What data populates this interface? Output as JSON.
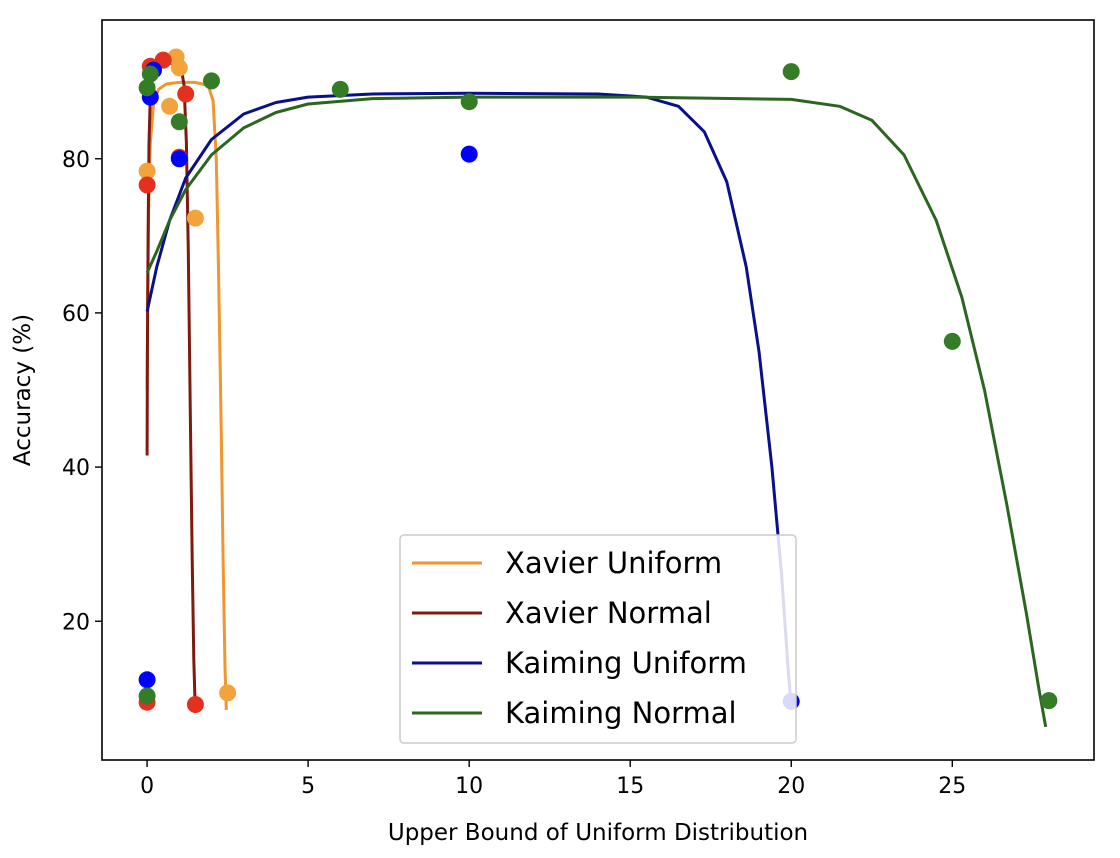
{
  "chart_data": {
    "type": "scatter",
    "title": "",
    "xlabel": "Upper Bound of Uniform Distribution",
    "ylabel": "Accuracy (%)",
    "xlim": [
      -1.4,
      29.4
    ],
    "ylim": [
      2,
      98
    ],
    "x_ticks": [
      0,
      5,
      10,
      15,
      20,
      25
    ],
    "y_ticks": [
      20,
      40,
      60,
      80
    ],
    "grid": false,
    "legend_position": "lower center",
    "series": [
      {
        "name": "Xavier Uniform",
        "line_color": "#f0952f",
        "point_color": "#f2a33b",
        "points": [
          {
            "x": 0.0,
            "y": 78.4
          },
          {
            "x": 0.7,
            "y": 86.8
          },
          {
            "x": 0.9,
            "y": 93.2
          },
          {
            "x": 1.0,
            "y": 91.8
          },
          {
            "x": 1.5,
            "y": 72.3
          },
          {
            "x": 2.5,
            "y": 10.7
          }
        ],
        "curve": [
          {
            "x": 0.0,
            "y": 50
          },
          {
            "x": 0.02,
            "y": 62
          },
          {
            "x": 0.05,
            "y": 74
          },
          {
            "x": 0.1,
            "y": 82
          },
          {
            "x": 0.2,
            "y": 87
          },
          {
            "x": 0.35,
            "y": 89
          },
          {
            "x": 0.6,
            "y": 89.7
          },
          {
            "x": 1.0,
            "y": 89.9
          },
          {
            "x": 1.5,
            "y": 89.9
          },
          {
            "x": 1.9,
            "y": 89.5
          },
          {
            "x": 2.05,
            "y": 87.5
          },
          {
            "x": 2.15,
            "y": 80
          },
          {
            "x": 2.22,
            "y": 65
          },
          {
            "x": 2.3,
            "y": 45
          },
          {
            "x": 2.36,
            "y": 28
          },
          {
            "x": 2.42,
            "y": 14
          },
          {
            "x": 2.46,
            "y": 8.5
          }
        ]
      },
      {
        "name": "Xavier Normal",
        "line_color": "#7e1a0e",
        "point_color": "#e4301f",
        "points": [
          {
            "x": 0.0,
            "y": 76.6
          },
          {
            "x": 0.0,
            "y": 9.5
          },
          {
            "x": 0.1,
            "y": 92.0
          },
          {
            "x": 0.5,
            "y": 92.8
          },
          {
            "x": 1.0,
            "y": 80.2
          },
          {
            "x": 1.2,
            "y": 88.4
          },
          {
            "x": 1.5,
            "y": 9.2
          }
        ],
        "curve": [
          {
            "x": 0.0,
            "y": 41.5
          },
          {
            "x": 0.01,
            "y": 55
          },
          {
            "x": 0.03,
            "y": 70
          },
          {
            "x": 0.06,
            "y": 82
          },
          {
            "x": 0.1,
            "y": 88
          },
          {
            "x": 0.18,
            "y": 91.2
          },
          {
            "x": 0.3,
            "y": 92.1
          },
          {
            "x": 0.6,
            "y": 92.4
          },
          {
            "x": 0.9,
            "y": 92.4
          },
          {
            "x": 1.05,
            "y": 92.0
          },
          {
            "x": 1.15,
            "y": 89.5
          },
          {
            "x": 1.22,
            "y": 82
          },
          {
            "x": 1.28,
            "y": 68
          },
          {
            "x": 1.34,
            "y": 48
          },
          {
            "x": 1.4,
            "y": 28
          },
          {
            "x": 1.45,
            "y": 15
          },
          {
            "x": 1.49,
            "y": 9.3
          }
        ]
      },
      {
        "name": "Kaiming Uniform",
        "line_color": "#0a0f8a",
        "point_color": "#0000ff",
        "points": [
          {
            "x": 0.0,
            "y": 12.4
          },
          {
            "x": 0.1,
            "y": 88.0
          },
          {
            "x": 0.2,
            "y": 91.5
          },
          {
            "x": 1.0,
            "y": 80.0
          },
          {
            "x": 10.0,
            "y": 80.6
          },
          {
            "x": 20.0,
            "y": 9.6
          }
        ],
        "curve": [
          {
            "x": 0.0,
            "y": 60.2
          },
          {
            "x": 0.3,
            "y": 66
          },
          {
            "x": 0.7,
            "y": 72
          },
          {
            "x": 1.2,
            "y": 77.5
          },
          {
            "x": 2.0,
            "y": 82.5
          },
          {
            "x": 3.0,
            "y": 85.8
          },
          {
            "x": 4.0,
            "y": 87.3
          },
          {
            "x": 5.0,
            "y": 88.0
          },
          {
            "x": 7.0,
            "y": 88.4
          },
          {
            "x": 10.0,
            "y": 88.5
          },
          {
            "x": 14.0,
            "y": 88.4
          },
          {
            "x": 15.5,
            "y": 88.0
          },
          {
            "x": 16.5,
            "y": 86.8
          },
          {
            "x": 17.3,
            "y": 83.5
          },
          {
            "x": 18.0,
            "y": 77
          },
          {
            "x": 18.6,
            "y": 66
          },
          {
            "x": 19.0,
            "y": 55
          },
          {
            "x": 19.4,
            "y": 40
          },
          {
            "x": 19.7,
            "y": 26
          },
          {
            "x": 19.9,
            "y": 14
          },
          {
            "x": 20.0,
            "y": 9.0
          }
        ]
      },
      {
        "name": "Kaiming Normal",
        "line_color": "#2b6520",
        "point_color": "#347d26",
        "points": [
          {
            "x": 0.0,
            "y": 89.2
          },
          {
            "x": 0.0,
            "y": 10.3
          },
          {
            "x": 0.1,
            "y": 91.0
          },
          {
            "x": 1.0,
            "y": 84.8
          },
          {
            "x": 2.0,
            "y": 90.1
          },
          {
            "x": 6.0,
            "y": 89.0
          },
          {
            "x": 10.0,
            "y": 87.4
          },
          {
            "x": 20.0,
            "y": 91.3
          },
          {
            "x": 25.0,
            "y": 56.3
          },
          {
            "x": 28.0,
            "y": 9.7
          }
        ],
        "curve": [
          {
            "x": 0.0,
            "y": 65.2
          },
          {
            "x": 0.3,
            "y": 68
          },
          {
            "x": 0.7,
            "y": 72
          },
          {
            "x": 1.2,
            "y": 76
          },
          {
            "x": 2.0,
            "y": 80.5
          },
          {
            "x": 3.0,
            "y": 84
          },
          {
            "x": 4.0,
            "y": 86
          },
          {
            "x": 5.0,
            "y": 87.1
          },
          {
            "x": 7.0,
            "y": 87.8
          },
          {
            "x": 10.0,
            "y": 88.0
          },
          {
            "x": 15.0,
            "y": 88.0
          },
          {
            "x": 20.0,
            "y": 87.7
          },
          {
            "x": 21.5,
            "y": 86.8
          },
          {
            "x": 22.5,
            "y": 85.0
          },
          {
            "x": 23.5,
            "y": 80.5
          },
          {
            "x": 24.5,
            "y": 72
          },
          {
            "x": 25.3,
            "y": 62
          },
          {
            "x": 26.0,
            "y": 50
          },
          {
            "x": 26.7,
            "y": 35
          },
          {
            "x": 27.3,
            "y": 21
          },
          {
            "x": 27.7,
            "y": 11
          },
          {
            "x": 27.9,
            "y": 6.3
          }
        ]
      }
    ]
  }
}
